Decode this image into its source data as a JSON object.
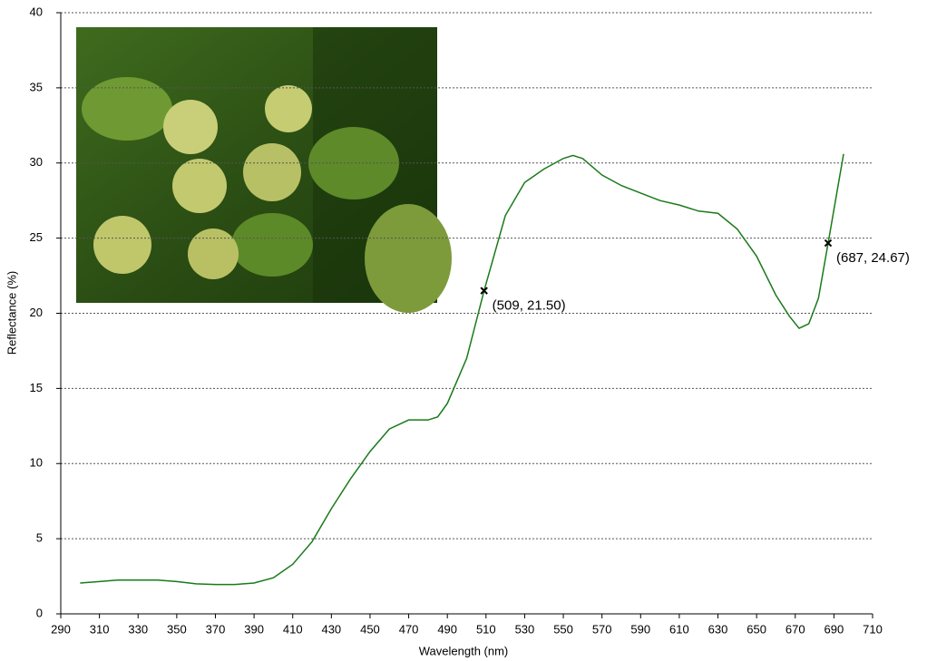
{
  "chart_data": {
    "type": "line",
    "x_label": "Wavelength (nm)",
    "y_label": "Reflectance (%)",
    "x": [
      300,
      310,
      320,
      330,
      340,
      350,
      360,
      370,
      380,
      390,
      400,
      410,
      420,
      430,
      440,
      450,
      460,
      470,
      480,
      485,
      490,
      500,
      509,
      520,
      530,
      540,
      550,
      555,
      560,
      570,
      580,
      590,
      600,
      610,
      620,
      630,
      640,
      650,
      660,
      667,
      672,
      677,
      682,
      687,
      695
    ],
    "series": [
      {
        "color": "#1a7a1a",
        "values": [
          2.05,
          2.15,
          2.25,
          2.25,
          2.25,
          2.15,
          2.0,
          1.95,
          1.95,
          2.05,
          2.4,
          3.3,
          4.8,
          7.0,
          9.0,
          10.8,
          12.3,
          12.9,
          12.9,
          13.1,
          14.0,
          17.0,
          21.5,
          26.5,
          28.7,
          29.6,
          30.3,
          30.5,
          30.3,
          29.2,
          28.5,
          28.0,
          27.5,
          27.2,
          26.8,
          26.65,
          25.6,
          23.8,
          21.2,
          19.8,
          19.0,
          19.3,
          21.0,
          24.67,
          30.6
        ]
      }
    ],
    "annotations": [
      {
        "x": 509,
        "y": 21.5,
        "label": "(509, 21.50)"
      },
      {
        "x": 687,
        "y": 24.67,
        "label": "(687, 24.67)"
      }
    ],
    "xlim": [
      290,
      710
    ],
    "xticks": [
      290,
      310,
      330,
      350,
      370,
      390,
      410,
      430,
      450,
      470,
      490,
      510,
      530,
      550,
      570,
      590,
      610,
      630,
      650,
      670,
      690,
      710
    ],
    "ylim": [
      0,
      40
    ],
    "yticks": [
      0,
      5,
      10,
      15,
      20,
      25,
      30,
      35,
      40
    ],
    "grid": true
  }
}
